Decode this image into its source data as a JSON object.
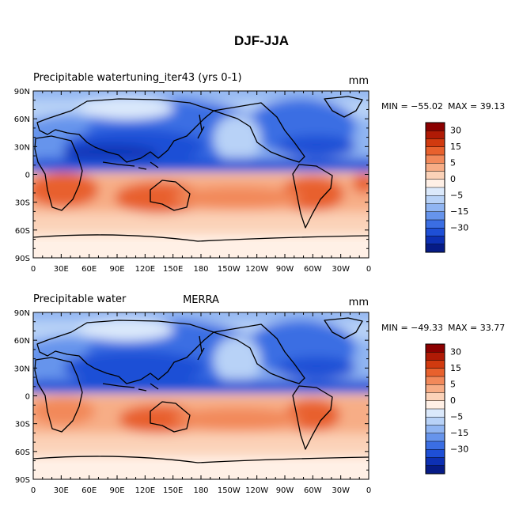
{
  "main_title": "DJF-JJA",
  "chart_data": [
    {
      "type": "heatmap",
      "title_left": "Precipitable watertuning_iter43 (yrs 0-1)",
      "title_center": "",
      "units": "mm",
      "min_label": "MIN = −55.02",
      "max_label": "MAX =  39.13",
      "xlabel": "",
      "ylabel": "",
      "x_ticks": [
        "0",
        "30E",
        "60E",
        "90E",
        "120E",
        "150E",
        "180",
        "150W",
        "120W",
        "90W",
        "60W",
        "30W",
        "0"
      ],
      "y_ticks": [
        "90N",
        "60N",
        "30N",
        "0",
        "30S",
        "60S",
        "90S"
      ],
      "xlim": [
        0,
        360
      ],
      "ylim": [
        -90,
        90
      ]
    },
    {
      "type": "heatmap",
      "title_left": "Precipitable water",
      "title_center": "MERRA",
      "units": "mm",
      "min_label": "MIN = −49.33",
      "max_label": "MAX =  33.77",
      "xlabel": "",
      "ylabel": "",
      "x_ticks": [
        "0",
        "30E",
        "60E",
        "90E",
        "120E",
        "150E",
        "180",
        "150W",
        "120W",
        "90W",
        "60W",
        "30W",
        "0"
      ],
      "y_ticks": [
        "90N",
        "60N",
        "30N",
        "0",
        "30S",
        "60S",
        "90S"
      ],
      "xlim": [
        0,
        360
      ],
      "ylim": [
        -90,
        90
      ]
    }
  ],
  "colorbar": {
    "colors": [
      "#8b0000",
      "#b01a05",
      "#d13a0f",
      "#e8612d",
      "#f2895a",
      "#f7ad86",
      "#fbd2b8",
      "#fff0e6",
      "#dbe9fb",
      "#b8d2f7",
      "#90b5f2",
      "#6694ec",
      "#3b6ee3",
      "#1e4fd6",
      "#0d30b3",
      "#061b86"
    ],
    "labels": [
      "30",
      "15",
      "5",
      "0",
      "−5",
      "−15",
      "−30"
    ]
  }
}
